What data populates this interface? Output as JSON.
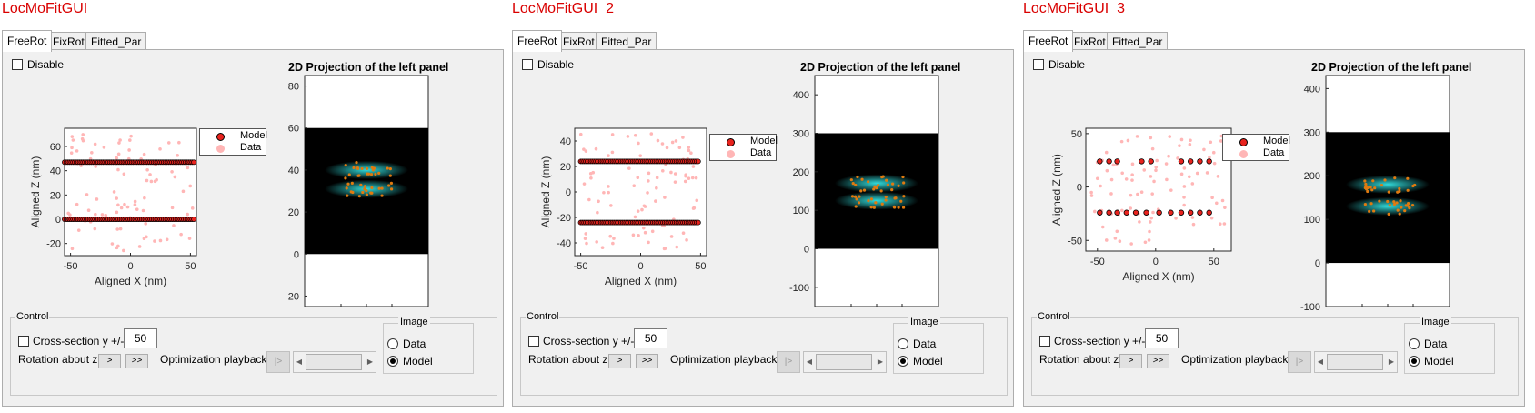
{
  "colors": {
    "title_red": "#d90000",
    "model_fill": "#e8231e",
    "data_fill": "#ffb6b6",
    "cyan": "#33e6e6",
    "orange": "#e07a10"
  },
  "panels": [
    {
      "title": "LocMoFitGUI",
      "tabs": [
        "FreeRot",
        "FixRot",
        "Fitted_Par"
      ],
      "disable_label": "Disable",
      "projection_title": "2D Projection of the left panel",
      "legend": {
        "model": "Model",
        "data": "Data"
      },
      "scatter": {
        "xlabel": "Aligned X (nm)",
        "ylabel": "Aligned Z (nm)",
        "xticks": [
          "-50",
          "0",
          "50"
        ],
        "yticks": [
          "60",
          "40",
          "20",
          "0",
          "-20"
        ],
        "xlim": [
          -55,
          55
        ],
        "ylim": [
          -30,
          75
        ],
        "model_rows": [
          {
            "y": 47,
            "x": [
              -55,
              54
            ]
          },
          {
            "y": 0,
            "x": [
              -55,
              54
            ]
          }
        ]
      },
      "projection": {
        "yticks": [
          "80",
          "60",
          "40",
          "20",
          "0",
          "-20"
        ],
        "ylim": [
          -25,
          85
        ],
        "band": [
          0,
          60
        ],
        "blob_y": [
          40,
          31
        ]
      },
      "control": {
        "title": "Control",
        "cross_label": "Cross-section y +/-",
        "cross_value": "50",
        "rotation_label": "Rotation about z",
        "step_label": ">",
        "fast_label": ">>",
        "playback_label": "Optimization playback",
        "play_label": "|>",
        "image_title": "Image",
        "image_options": [
          "Data",
          "Model"
        ],
        "image_selected": "Model"
      }
    },
    {
      "title": "LocMoFitGUI_2",
      "tabs": [
        "FreeRot",
        "FixRot",
        "Fitted_Par"
      ],
      "disable_label": "Disable",
      "projection_title": "2D Projection of the left panel",
      "legend": {
        "model": "Model",
        "data": "Data"
      },
      "scatter": {
        "xlabel": "Aligned X (nm)",
        "ylabel": "Aligned Z (nm)",
        "xticks": [
          "-50",
          "0",
          "50"
        ],
        "yticks": [
          "40",
          "20",
          "0",
          "-20",
          "-40"
        ],
        "xlim": [
          -55,
          55
        ],
        "ylim": [
          -50,
          50
        ],
        "model_rows": [
          {
            "y": 24,
            "x": [
              -50,
              48
            ]
          },
          {
            "y": -24,
            "x": [
              -50,
              48
            ]
          }
        ]
      },
      "projection": {
        "yticks": [
          "400",
          "300",
          "200",
          "100",
          "0",
          "-100"
        ],
        "ylim": [
          -150,
          450
        ],
        "band": [
          0,
          300
        ],
        "blob_y": [
          170,
          125
        ]
      },
      "control": {
        "title": "Control",
        "cross_label": "Cross-section y +/-",
        "cross_value": "50",
        "rotation_label": "Rotation about z",
        "step_label": ">",
        "fast_label": ">>",
        "playback_label": "Optimization playback",
        "play_label": "|>",
        "image_title": "Image",
        "image_options": [
          "Data",
          "Model"
        ],
        "image_selected": "Model"
      }
    },
    {
      "title": "LocMoFitGUI_3",
      "tabs": [
        "FreeRot",
        "FixRot",
        "Fitted_Par"
      ],
      "disable_label": "Disable",
      "projection_title": "2D Projection of the left panel",
      "legend": {
        "model": "Model",
        "data": "Data"
      },
      "scatter": {
        "xlabel": "Aligned X (nm)",
        "ylabel": "Aligned Z (nm)",
        "xticks": [
          "-50",
          "0",
          "50"
        ],
        "yticks": [
          "50",
          "0",
          "-50"
        ],
        "xlim": [
          -60,
          65
        ],
        "ylim": [
          -60,
          55
        ],
        "model_points": [
          {
            "y": 24,
            "x": [
              -48,
              -40,
              -33,
              -12,
              -4,
              22,
              30,
              38,
              46
            ]
          },
          {
            "y": -24,
            "x": [
              -48,
              -40,
              -33,
              -25,
              -17,
              -8,
              3,
              13,
              22,
              30,
              38,
              46
            ]
          }
        ]
      },
      "projection": {
        "yticks": [
          "400",
          "300",
          "200",
          "100",
          "0",
          "-100"
        ],
        "ylim": [
          -100,
          430
        ],
        "band": [
          0,
          300
        ],
        "blob_y": [
          180,
          130
        ]
      },
      "control": {
        "title": "Control",
        "cross_label": "Cross-section y +/-",
        "cross_value": "50",
        "rotation_label": "Rotation about z",
        "step_label": ">",
        "fast_label": ">>",
        "playback_label": "Optimization playback",
        "play_label": "|>",
        "image_title": "Image",
        "image_options": [
          "Data",
          "Model"
        ],
        "image_selected": "Model"
      }
    }
  ]
}
